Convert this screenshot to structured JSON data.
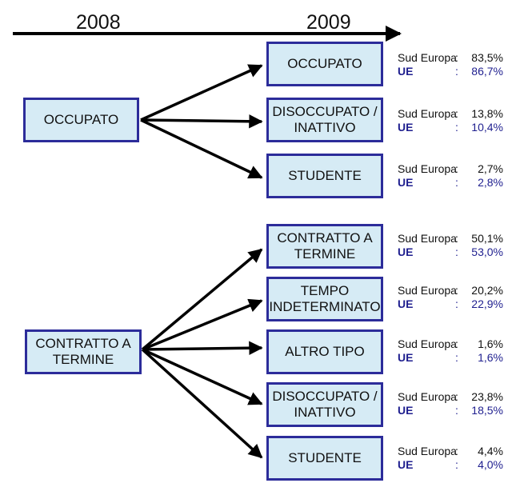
{
  "timeline": {
    "year_from": "2008",
    "year_to": "2009"
  },
  "groups": [
    {
      "source": "OCCUPATO",
      "outcomes": [
        {
          "label": "OCCUPATO",
          "sud_label": "Sud Europa",
          "sud_value": "83,5%",
          "ue_label": "UE",
          "ue_value": "86,7%"
        },
        {
          "label": "DISOCCUPATO / INATTIVO",
          "sud_label": "Sud Europa",
          "sud_value": "13,8%",
          "ue_label": "UE",
          "ue_value": "10,4%"
        },
        {
          "label": "STUDENTE",
          "sud_label": "Sud Europa",
          "sud_value": "2,7%",
          "ue_label": "UE",
          "ue_value": "2,8%"
        }
      ]
    },
    {
      "source": "CONTRATTO A TERMINE",
      "outcomes": [
        {
          "label": "CONTRATTO A TERMINE",
          "sud_label": "Sud Europa",
          "sud_value": "50,1%",
          "ue_label": "UE",
          "ue_value": "53,0%"
        },
        {
          "label": "TEMPO INDETERMINATO",
          "sud_label": "Sud Europa",
          "sud_value": "20,2%",
          "ue_label": "UE",
          "ue_value": "22,9%"
        },
        {
          "label": "ALTRO TIPO",
          "sud_label": "Sud Europa",
          "sud_value": "1,6%",
          "ue_label": "UE",
          "ue_value": "1,6%"
        },
        {
          "label": "DISOCCUPATO / INATTIVO",
          "sud_label": "Sud Europa",
          "sud_value": "23,8%",
          "ue_label": "UE",
          "ue_value": "18,5%"
        },
        {
          "label": "STUDENTE",
          "sud_label": "Sud Europa",
          "sud_value": "4,4%",
          "ue_label": "UE",
          "ue_value": "4,0%"
        }
      ]
    }
  ],
  "colors": {
    "box_fill": "#d6ebf5",
    "box_border": "#2c2c9a",
    "ue_text": "#1f1f8f",
    "arrow": "#000000"
  }
}
